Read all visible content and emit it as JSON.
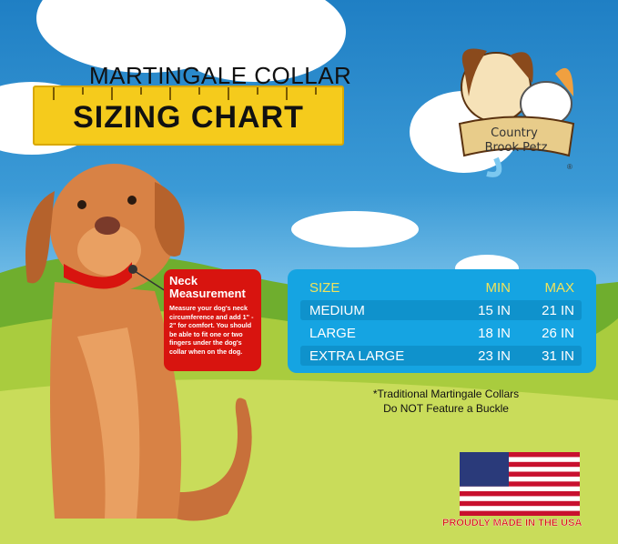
{
  "header": {
    "line1": "MARTINGALE COLLAR",
    "line2": "SIZING CHART"
  },
  "logo": {
    "brand": "Country Brook Petz",
    "mark": "®"
  },
  "callout": {
    "title": "Neck Measurement",
    "body": "Measure your dog's neck circumference and add 1\" - 2\" for comfort. You should be able to fit one or two fingers under the dog's collar when on the dog."
  },
  "table": {
    "headers": [
      "SIZE",
      "MIN",
      "MAX"
    ],
    "rows": [
      [
        "MEDIUM",
        "15 IN",
        "21 IN"
      ],
      [
        "LARGE",
        "18 IN",
        "26 IN"
      ],
      [
        "EXTRA LARGE",
        "23 IN",
        "31 IN"
      ]
    ]
  },
  "note": {
    "line1": "*Traditional Martingale Collars",
    "line2": "Do NOT Feature a Buckle"
  },
  "footer": {
    "made": "PROUDLY MADE IN THE USA"
  },
  "colors": {
    "ruler": "#f5cb1c",
    "callout": "#d8140f",
    "table": "#15a4e2",
    "header_text": "#f1e35a"
  }
}
